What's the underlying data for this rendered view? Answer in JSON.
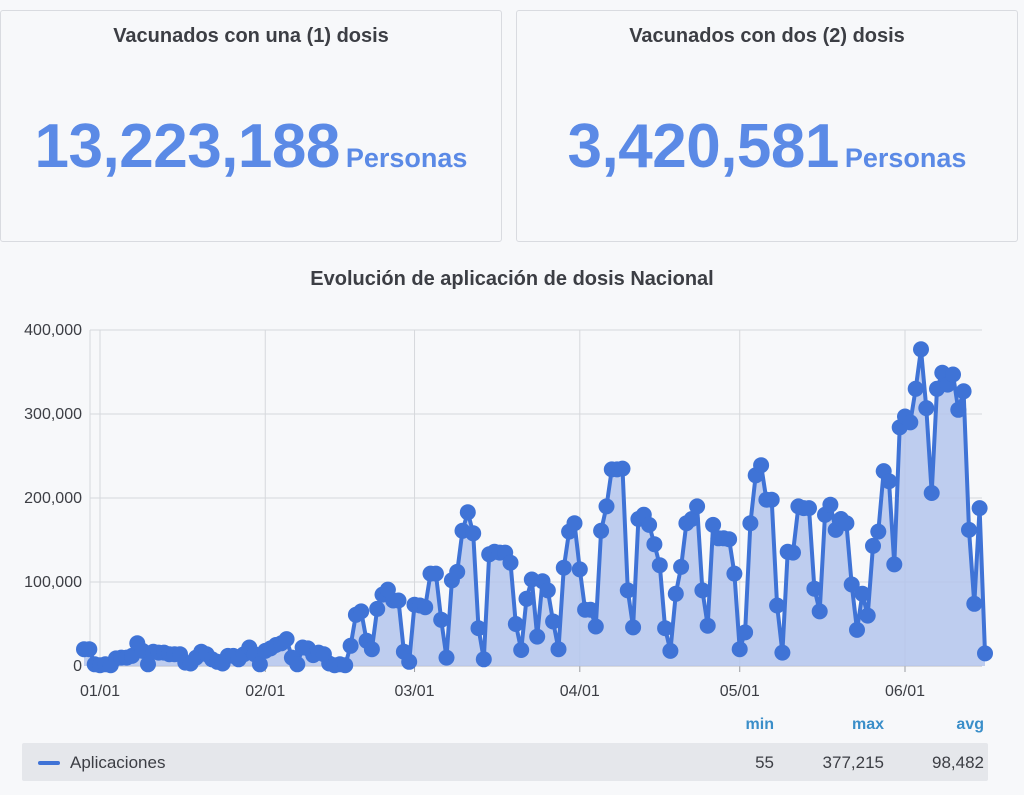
{
  "cards": [
    {
      "title": "Vacunados con una (1) dosis",
      "value": "13,223,188",
      "unit": "Personas"
    },
    {
      "title": "Vacunados con dos (2) dosis",
      "value": "3,420,581",
      "unit": "Personas"
    }
  ],
  "legend": {
    "headers": {
      "min": "min",
      "max": "max",
      "avg": "avg"
    },
    "series_label": "Aplicaciones",
    "min": "55",
    "max": "377,215",
    "avg": "98,482"
  },
  "colors": {
    "accent": "#5b8ae6",
    "line": "#3f73d6",
    "fill": "#b4c6ec",
    "legend_head": "#3a8ec9"
  },
  "chart_data": {
    "type": "area",
    "title": "Evolución de aplicación de dosis Nacional",
    "xlabel": "",
    "ylabel": "",
    "ylim": [
      0,
      400000
    ],
    "yticks": [
      0,
      100000,
      200000,
      300000,
      400000
    ],
    "ytick_labels": [
      "0",
      "100,000",
      "200,000",
      "300,000",
      "400,000"
    ],
    "xticks": [
      "2021-01-01",
      "2021-02-01",
      "2021-03-01",
      "2021-04-01",
      "2021-05-01",
      "2021-06-01"
    ],
    "xtick_labels": [
      "01/01",
      "02/01",
      "03/01",
      "04/01",
      "05/01",
      "06/01"
    ],
    "grid": true,
    "x_start": "2020-12-29",
    "series": [
      {
        "name": "Aplicaciones",
        "values": [
          20000,
          20000,
          2000,
          1000,
          2000,
          1000,
          9000,
          10000,
          10000,
          12000,
          27000,
          18000,
          2000,
          17000,
          16000,
          16000,
          14000,
          14000,
          14000,
          4000,
          3000,
          10000,
          17000,
          14000,
          8000,
          5000,
          3000,
          12000,
          12000,
          8000,
          14000,
          22000,
          14000,
          2000,
          18000,
          21000,
          25000,
          27000,
          32000,
          10000,
          2000,
          22000,
          21000,
          13000,
          16000,
          14000,
          3000,
          1000,
          2000,
          1000,
          24000,
          61000,
          65000,
          30000,
          20000,
          68000,
          85000,
          91000,
          78000,
          78000,
          17000,
          5000,
          73000,
          72000,
          70000,
          110000,
          110000,
          55000,
          10000,
          102000,
          112000,
          161000,
          183000,
          158000,
          45000,
          8000,
          133000,
          136000,
          135000,
          135000,
          123000,
          50000,
          19000,
          80000,
          103000,
          35000,
          101000,
          90000,
          53000,
          20000,
          117000,
          160000,
          170000,
          115000,
          67000,
          67000,
          47000,
          161000,
          190000,
          234000,
          234000,
          235000,
          90000,
          46000,
          175000,
          180000,
          168000,
          145000,
          120000,
          45000,
          18000,
          86000,
          118000,
          170000,
          175000,
          190000,
          90000,
          48000,
          168000,
          152000,
          152000,
          151000,
          110000,
          20000,
          40000,
          170000,
          227000,
          239000,
          198000,
          198000,
          72000,
          16000,
          136000,
          135000,
          190000,
          188000,
          188000,
          92000,
          65000,
          180000,
          192000,
          162000,
          175000,
          170000,
          97000,
          43000,
          86000,
          60000,
          143000,
          160000,
          232000,
          220000,
          121000,
          284000,
          297000,
          290000,
          330000,
          377000,
          307000,
          206000,
          330000,
          349000,
          335000,
          347000,
          305000,
          327000,
          162000,
          74000,
          188000,
          15000
        ]
      }
    ]
  }
}
